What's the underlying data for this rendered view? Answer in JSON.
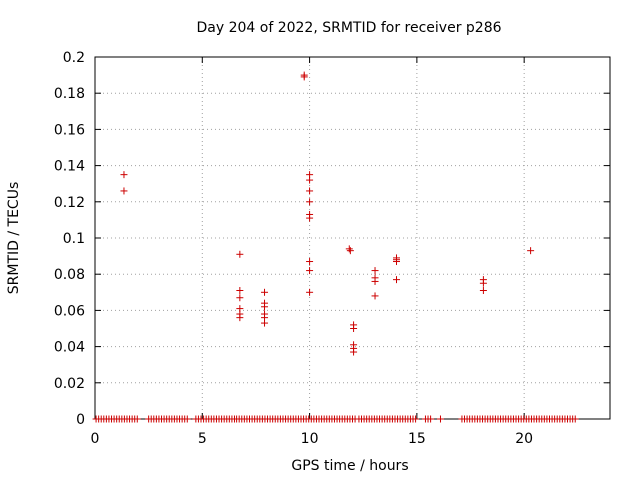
{
  "chart_data": {
    "type": "scatter",
    "title": "Day 204 of 2022, SRMTID for receiver p286",
    "xlabel": "GPS time / hours",
    "ylabel": "SRMTID / TECUs",
    "xlim": [
      0,
      24
    ],
    "ylim": [
      0,
      0.2
    ],
    "grid": true,
    "marker": "+",
    "color": "#cc0000",
    "x_ticks": [
      0,
      5,
      10,
      15,
      20
    ],
    "x_tick_labels": [
      "0",
      "5",
      "10",
      "15",
      "20"
    ],
    "y_ticks": [
      0,
      0.02,
      0.04,
      0.06,
      0.08,
      0.1,
      0.12,
      0.14,
      0.16,
      0.18,
      0.2
    ],
    "y_tick_labels": [
      "0",
      "0.02",
      "0.04",
      "0.06",
      "0.08",
      "0.1",
      "0.12",
      "0.14",
      "0.16",
      "0.18",
      "0.2"
    ],
    "points": [
      [
        1.35,
        0.135
      ],
      [
        1.35,
        0.126
      ],
      [
        6.75,
        0.091
      ],
      [
        6.75,
        0.071
      ],
      [
        6.75,
        0.067
      ],
      [
        6.75,
        0.061
      ],
      [
        6.75,
        0.058
      ],
      [
        6.75,
        0.056
      ],
      [
        7.9,
        0.07
      ],
      [
        7.9,
        0.064
      ],
      [
        7.9,
        0.062
      ],
      [
        7.9,
        0.058
      ],
      [
        7.9,
        0.056
      ],
      [
        7.9,
        0.053
      ],
      [
        9.75,
        0.19
      ],
      [
        9.75,
        0.189
      ],
      [
        10.0,
        0.135
      ],
      [
        10.0,
        0.132
      ],
      [
        10.0,
        0.126
      ],
      [
        10.0,
        0.12
      ],
      [
        10.0,
        0.113
      ],
      [
        10.0,
        0.111
      ],
      [
        10.0,
        0.087
      ],
      [
        10.0,
        0.082
      ],
      [
        10.0,
        0.07
      ],
      [
        11.85,
        0.094
      ],
      [
        11.9,
        0.093
      ],
      [
        12.05,
        0.052
      ],
      [
        12.05,
        0.05
      ],
      [
        12.05,
        0.041
      ],
      [
        12.05,
        0.039
      ],
      [
        12.05,
        0.037
      ],
      [
        13.05,
        0.082
      ],
      [
        13.05,
        0.078
      ],
      [
        13.05,
        0.076
      ],
      [
        13.05,
        0.068
      ],
      [
        14.05,
        0.089
      ],
      [
        14.05,
        0.088
      ],
      [
        14.05,
        0.087
      ],
      [
        14.05,
        0.077
      ],
      [
        18.1,
        0.077
      ],
      [
        18.1,
        0.075
      ],
      [
        18.1,
        0.071
      ],
      [
        20.3,
        0.093
      ]
    ],
    "zero_series": {
      "y": 0,
      "x_ranges": [
        [
          0.05,
          2.0
        ],
        [
          2.5,
          4.3
        ],
        [
          4.7,
          6.5
        ],
        [
          6.6,
          12.2
        ],
        [
          12.3,
          15.0
        ],
        [
          15.4,
          15.7
        ],
        [
          16.1,
          16.2
        ],
        [
          17.1,
          22.4
        ]
      ],
      "step": 0.12
    }
  }
}
